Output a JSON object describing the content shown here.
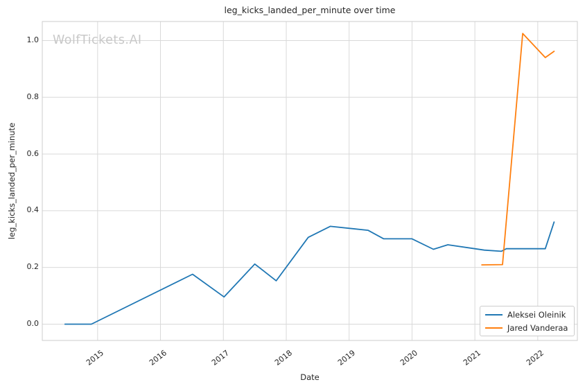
{
  "watermark": "WolfTickets.AI",
  "chart_data": {
    "type": "line",
    "title": "leg_kicks_landed_per_minute over time",
    "xlabel": "Date",
    "ylabel": "leg_kicks_landed_per_minute",
    "grid": true,
    "legend_position": "lower right",
    "x_tick_labels": [
      "2015",
      "2016",
      "2017",
      "2018",
      "2019",
      "2020",
      "2021",
      "2022"
    ],
    "x_tick_values": [
      2015,
      2016,
      2017,
      2018,
      2019,
      2020,
      2021,
      2022
    ],
    "y_tick_labels": [
      "0.0",
      "0.2",
      "0.4",
      "0.6",
      "0.8",
      "1.0"
    ],
    "y_tick_values": [
      0.0,
      0.2,
      0.4,
      0.6,
      0.8,
      1.0
    ],
    "xlim": [
      2014.12,
      2022.63
    ],
    "ylim": [
      -0.0575,
      1.0672
    ],
    "grid_color": "#d9d9d9",
    "spine_color": "#cccccc",
    "series": [
      {
        "name": "Aleksei Oleinik",
        "color": "#1f77b4",
        "x": [
          2014.48,
          2014.9,
          2016.51,
          2017.01,
          2017.5,
          2017.84,
          2018.35,
          2018.7,
          2019.3,
          2019.55,
          2020.0,
          2020.34,
          2020.57,
          2021.0,
          2021.15,
          2021.42,
          2021.5,
          2022.12,
          2022.26
        ],
        "y": [
          0.0,
          0.0,
          0.176,
          0.096,
          0.212,
          0.153,
          0.306,
          0.345,
          0.331,
          0.301,
          0.301,
          0.264,
          0.28,
          0.266,
          0.261,
          0.257,
          0.266,
          0.266,
          0.36
        ]
      },
      {
        "name": "Jared Vanderaa",
        "color": "#ff7f0e",
        "x": [
          2021.11,
          2021.44,
          2021.76,
          2022.12,
          2022.26
        ],
        "y": [
          0.209,
          0.21,
          1.025,
          0.94,
          0.962
        ]
      }
    ]
  }
}
